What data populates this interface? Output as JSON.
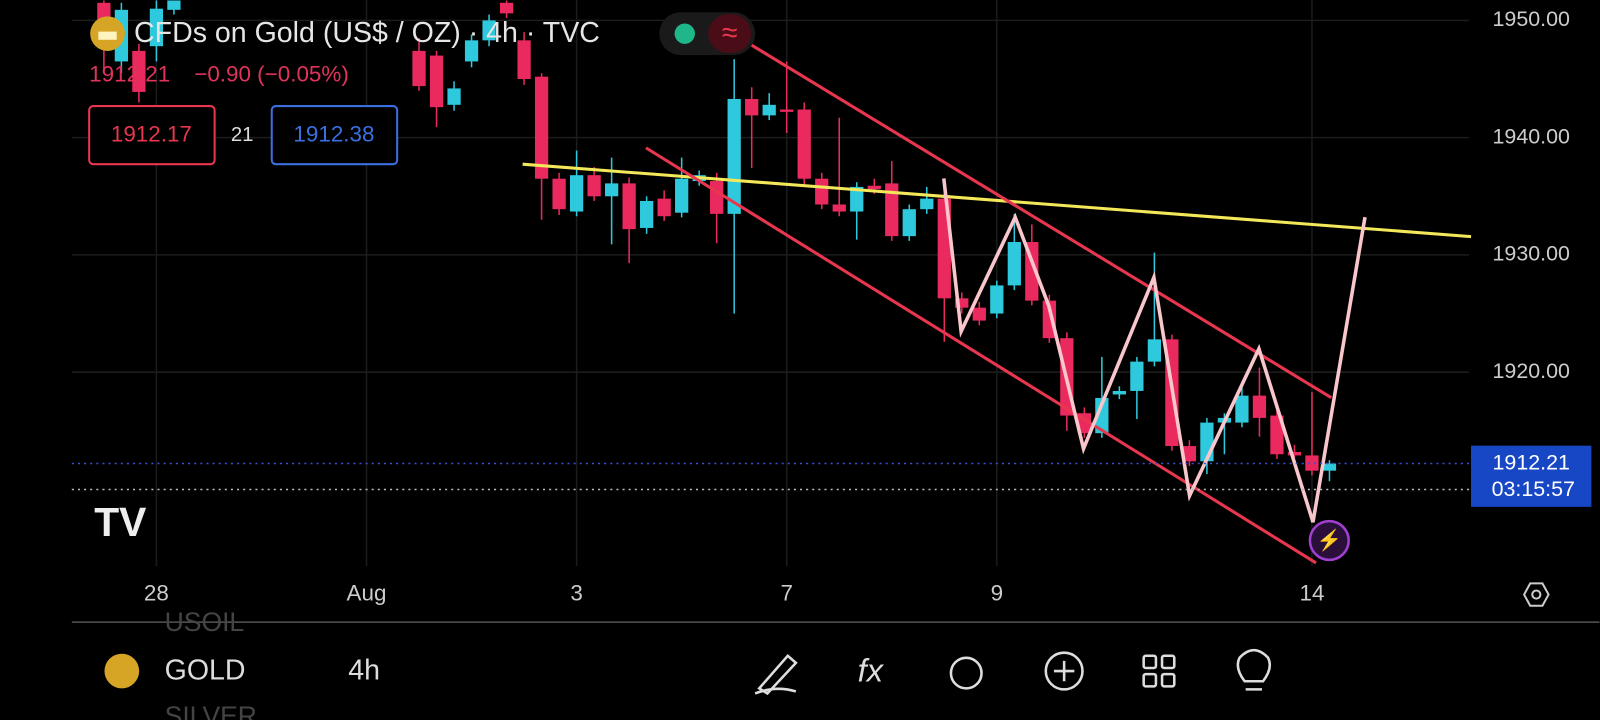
{
  "header": {
    "symbol_title": "CFDs on Gold (US$ / OZ) · 4h · TVC",
    "change": "−0.90 (−0.05%)",
    "bid": "1912.17",
    "spread": "21",
    "ask": "1912.38"
  },
  "chart_data": {
    "type": "candlestick",
    "x": [
      -3,
      -2,
      -1,
      0,
      1,
      15,
      16,
      17,
      18,
      19,
      20,
      21,
      22,
      23,
      24,
      25,
      26,
      27,
      28,
      29,
      30,
      31,
      32,
      33,
      34,
      35,
      36,
      37,
      38,
      39,
      40,
      41,
      42,
      43,
      44,
      45,
      46,
      47,
      48,
      49,
      50,
      51,
      52,
      53,
      54,
      55,
      56,
      57,
      58,
      59,
      60,
      61,
      62,
      63,
      64,
      65,
      66,
      67
    ],
    "open": [
      1951.5,
      1946.5,
      1947.4,
      1947.8,
      1950.9,
      1947.4,
      1947.0,
      1942.8,
      1946.5,
      1948.3,
      1951.5,
      1948.3,
      1945.2,
      1936.5,
      1933.7,
      1936.8,
      1935.0,
      1936.1,
      1932.3,
      1934.8,
      1933.6,
      1936.3,
      1936.3,
      1933.5,
      1943.3,
      1941.9,
      1942.4,
      1942.4,
      1936.5,
      1934.3,
      1933.7,
      1935.9,
      1936.1,
      1931.6,
      1933.9,
      1934.8,
      1926.3,
      1925.5,
      1925.0,
      1927.4,
      1931.1,
      1926.1,
      1922.9,
      1916.5,
      1914.8,
      1918.1,
      1918.4,
      1920.9,
      1922.8,
      1913.7,
      1912.4,
      1915.7,
      1915.7,
      1918.0,
      1916.3,
      1913.2,
      1912.9,
      1911.6
    ],
    "high": [
      1951.7,
      1951.5,
      1948.0,
      1951.7,
      1951.7,
      1948.5,
      1947.4,
      1944.8,
      1948.8,
      1950.5,
      1951.7,
      1949.0,
      1945.5,
      1937.0,
      1938.9,
      1937.5,
      1938.3,
      1936.6,
      1935.0,
      1935.5,
      1938.3,
      1937.2,
      1937.0,
      1946.7,
      1944.3,
      1943.8,
      1946.5,
      1943.0,
      1937.0,
      1941.7,
      1936.2,
      1936.5,
      1938.0,
      1934.3,
      1935.8,
      1935.3,
      1926.8,
      1926.0,
      1927.8,
      1933.5,
      1932.6,
      1926.6,
      1923.4,
      1917.0,
      1921.3,
      1918.8,
      1921.3,
      1930.2,
      1923.2,
      1914.2,
      1916.1,
      1916.5,
      1918.9,
      1920.4,
      1917.0,
      1913.8,
      1918.3,
      1912.5
    ],
    "low": [
      1945.5,
      1945.5,
      1943.0,
      1946.5,
      1950.5,
      1944.0,
      1940.9,
      1942.3,
      1946.0,
      1947.8,
      1950.2,
      1944.5,
      1933.0,
      1933.4,
      1933.3,
      1934.6,
      1930.9,
      1929.3,
      1931.8,
      1932.9,
      1933.2,
      1935.9,
      1931.0,
      1925.0,
      1937.4,
      1941.5,
      1940.4,
      1936.0,
      1933.9,
      1933.3,
      1931.3,
      1935.2,
      1931.2,
      1931.2,
      1933.5,
      1922.6,
      1925.0,
      1924.0,
      1924.6,
      1927.0,
      1925.7,
      1922.5,
      1915.0,
      1914.4,
      1914.4,
      1917.7,
      1916.0,
      1920.5,
      1913.3,
      1912.0,
      1911.3,
      1913.0,
      1915.3,
      1914.5,
      1912.6,
      1912.7,
      1911.2,
      1910.7
    ],
    "close": [
      1948.0,
      1950.9,
      1943.9,
      1951.0,
      1951.7,
      1944.4,
      1942.6,
      1944.2,
      1948.3,
      1950.0,
      1950.6,
      1945.0,
      1936.5,
      1933.9,
      1936.8,
      1935.0,
      1936.1,
      1932.2,
      1934.6,
      1933.3,
      1936.5,
      1936.8,
      1933.5,
      1943.3,
      1941.9,
      1942.8,
      1942.2,
      1936.5,
      1934.3,
      1933.7,
      1935.8,
      1935.6,
      1931.6,
      1933.9,
      1934.8,
      1926.3,
      1925.5,
      1924.4,
      1927.4,
      1931.1,
      1926.1,
      1922.9,
      1916.3,
      1914.8,
      1917.8,
      1918.4,
      1920.9,
      1922.8,
      1913.7,
      1912.4,
      1915.7,
      1916.1,
      1918.0,
      1916.1,
      1913.0,
      1912.9,
      1911.6,
      1912.21
    ],
    "up_color": "#2ec9dc",
    "down_color": "#ea2a5f",
    "xlim": [
      -4.83,
      74.97
    ],
    "xticks": [
      {
        "value": 0,
        "label": "28"
      },
      {
        "value": 12,
        "label": "Aug"
      },
      {
        "value": 24,
        "label": "3"
      },
      {
        "value": 36,
        "label": "7"
      },
      {
        "value": 48,
        "label": "9"
      },
      {
        "value": 66,
        "label": "14"
      }
    ],
    "ylim": [
      1902.6,
      1951.74
    ],
    "yticks": [
      {
        "value": 1920,
        "label": "1920.00"
      },
      {
        "value": 1930,
        "label": "1930.00"
      },
      {
        "value": 1940,
        "label": "1940.00"
      },
      {
        "value": 1950,
        "label": "1950.00"
      }
    ],
    "grid": true,
    "last_price": 1912.21,
    "countdown": "03:15:57"
  },
  "toolbar": {
    "symbol": "GOLD",
    "interval": "4h",
    "prev_symbol": "USOIL",
    "next_symbol": "SILVER"
  }
}
